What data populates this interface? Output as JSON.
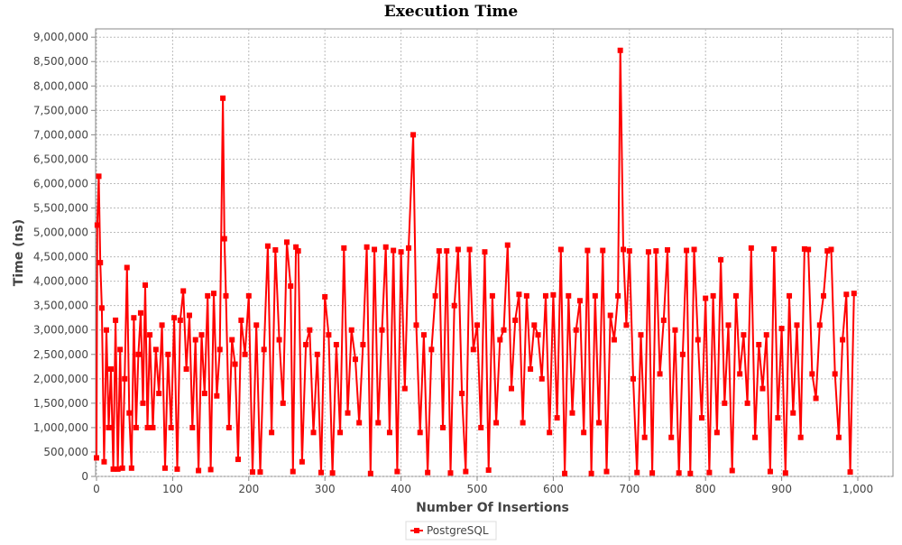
{
  "chart_data": {
    "type": "line",
    "title": "Execution Time",
    "x_label": "Number Of Insertions",
    "y_label": "Time (ns)",
    "xlim": [
      0,
      1046
    ],
    "ylim": [
      0,
      9170000
    ],
    "grid": true,
    "legend": "bottom",
    "xticks": [
      0,
      100,
      200,
      300,
      400,
      500,
      600,
      700,
      800,
      900,
      {
        "value": 1000,
        "label": "1,000"
      }
    ],
    "yticks": [
      0,
      {
        "value": 500000,
        "label": "500,000"
      },
      {
        "value": 1000000,
        "label": "1,000,000"
      },
      {
        "value": 1500000,
        "label": "1,500,000"
      },
      {
        "value": 2000000,
        "label": "2,000,000"
      },
      {
        "value": 2500000,
        "label": "2,500,000"
      },
      {
        "value": 3000000,
        "label": "3,000,000"
      },
      {
        "value": 3500000,
        "label": "3,500,000"
      },
      {
        "value": 4000000,
        "label": "4,000,000"
      },
      {
        "value": 4500000,
        "label": "4,500,000"
      },
      {
        "value": 5000000,
        "label": "5,000,000"
      },
      {
        "value": 5500000,
        "label": "5,500,000"
      },
      {
        "value": 6000000,
        "label": "6,000,000"
      },
      {
        "value": 6500000,
        "label": "6,500,000"
      },
      {
        "value": 7000000,
        "label": "7,000,000"
      },
      {
        "value": 7500000,
        "label": "7,500,000"
      },
      {
        "value": 8000000,
        "label": "8,000,000"
      },
      {
        "value": 8500000,
        "label": "8,500,000"
      },
      {
        "value": 9000000,
        "label": "9,000,000"
      }
    ],
    "x": [
      0,
      1,
      3,
      5,
      7,
      10,
      13,
      16,
      19,
      22,
      25,
      28,
      31,
      34,
      37,
      40,
      43,
      46,
      49,
      52,
      55,
      58,
      61,
      64,
      67,
      70,
      74,
      78,
      82,
      86,
      90,
      94,
      98,
      102,
      106,
      110,
      114,
      118,
      122,
      126,
      130,
      134,
      138,
      142,
      146,
      150,
      154,
      158,
      162,
      166,
      168,
      170,
      174,
      178,
      182,
      186,
      190,
      195,
      200,
      205,
      210,
      215,
      220,
      225,
      230,
      235,
      240,
      245,
      250,
      255,
      258,
      262,
      265,
      270,
      275,
      280,
      285,
      290,
      295,
      300,
      305,
      310,
      315,
      320,
      325,
      330,
      335,
      340,
      345,
      350,
      355,
      360,
      365,
      370,
      375,
      380,
      385,
      390,
      395,
      400,
      405,
      410,
      416,
      420,
      425,
      430,
      435,
      440,
      445,
      450,
      455,
      460,
      465,
      470,
      475,
      480,
      485,
      490,
      495,
      500,
      505,
      510,
      515,
      520,
      525,
      530,
      535,
      540,
      545,
      550,
      555,
      560,
      565,
      570,
      575,
      580,
      585,
      590,
      595,
      600,
      605,
      610,
      615,
      620,
      625,
      630,
      635,
      640,
      645,
      650,
      655,
      660,
      665,
      670,
      675,
      680,
      685,
      688,
      692,
      696,
      700,
      705,
      710,
      715,
      720,
      725,
      730,
      735,
      740,
      745,
      750,
      755,
      760,
      765,
      770,
      775,
      780,
      785,
      790,
      795,
      800,
      805,
      810,
      815,
      820,
      825,
      830,
      835,
      840,
      845,
      850,
      855,
      860,
      865,
      870,
      875,
      880,
      885,
      890,
      895,
      900,
      905,
      910,
      915,
      920,
      925,
      930,
      935,
      940,
      945,
      950,
      955,
      960,
      965,
      970,
      975,
      980,
      985,
      990,
      995
    ],
    "series": [
      {
        "name": "PostgreSQL",
        "color": "#ff0000",
        "values": [
          380000,
          5150000,
          6150000,
          4380000,
          3450000,
          300000,
          3000000,
          1000000,
          2200000,
          150000,
          3200000,
          150000,
          2600000,
          170000,
          2000000,
          4280000,
          1300000,
          170000,
          3250000,
          1000000,
          2500000,
          3350000,
          1500000,
          3920000,
          1000000,
          2900000,
          1000000,
          2600000,
          1700000,
          3100000,
          170000,
          2500000,
          1000000,
          3250000,
          150000,
          3200000,
          3800000,
          2200000,
          3300000,
          1000000,
          2800000,
          120000,
          2900000,
          1700000,
          3700000,
          140000,
          3750000,
          1650000,
          2600000,
          7750000,
          4870000,
          3700000,
          1000000,
          2800000,
          2300000,
          350000,
          3200000,
          2500000,
          3700000,
          90000,
          3100000,
          90000,
          2600000,
          4720000,
          900000,
          4640000,
          2800000,
          1500000,
          4800000,
          3900000,
          100000,
          4700000,
          4620000,
          300000,
          2700000,
          3000000,
          900000,
          2500000,
          80000,
          3680000,
          2900000,
          70000,
          2700000,
          900000,
          4680000,
          1300000,
          3000000,
          2400000,
          1100000,
          2700000,
          4700000,
          60000,
          4650000,
          1100000,
          3000000,
          4700000,
          900000,
          4630000,
          100000,
          4600000,
          1800000,
          4680000,
          7000000,
          3100000,
          900000,
          2900000,
          80000,
          2600000,
          3700000,
          4620000,
          1000000,
          4620000,
          70000,
          3500000,
          4650000,
          1700000,
          100000,
          4650000,
          2600000,
          3100000,
          1000000,
          4600000,
          130000,
          3700000,
          1100000,
          2800000,
          3000000,
          4740000,
          1800000,
          3200000,
          3730000,
          1100000,
          3700000,
          2200000,
          3100000,
          2900000,
          2000000,
          3700000,
          900000,
          3720000,
          1200000,
          4650000,
          60000,
          3700000,
          1300000,
          3000000,
          3600000,
          900000,
          4630000,
          60000,
          3700000,
          1100000,
          4630000,
          100000,
          3300000,
          2800000,
          3700000,
          8730000,
          4650000,
          3100000,
          4620000,
          2000000,
          80000,
          2900000,
          800000,
          4600000,
          70000,
          4620000,
          2100000,
          3200000,
          4640000,
          800000,
          3000000,
          70000,
          2500000,
          4630000,
          60000,
          4650000,
          2800000,
          1200000,
          3650000,
          80000,
          3700000,
          900000,
          4440000,
          1500000,
          3100000,
          120000,
          3700000,
          2100000,
          2900000,
          1500000,
          4680000,
          800000,
          2700000,
          1800000,
          2900000,
          100000,
          4660000,
          1200000,
          3030000,
          70000,
          3700000,
          1300000,
          3100000,
          800000,
          4660000,
          4650000,
          2100000,
          1600000,
          3100000,
          3700000,
          4620000,
          4650000,
          2100000,
          800000,
          2800000,
          3730000,
          90000,
          3750000
        ]
      }
    ]
  }
}
